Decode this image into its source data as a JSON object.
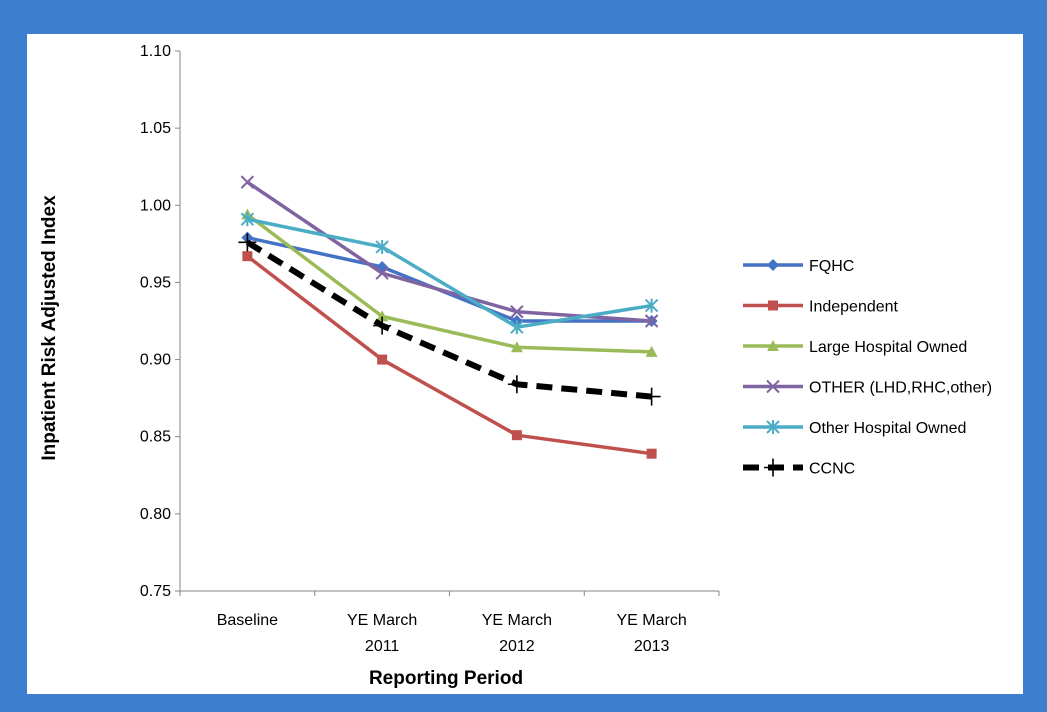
{
  "chart_data": {
    "type": "line",
    "title": "",
    "xlabel": "Reporting Period",
    "ylabel": "Inpatient Risk Adjusted Index",
    "ylim": [
      0.75,
      1.1
    ],
    "ytick_step": 0.05,
    "yticks": [
      "0.75",
      "0.80",
      "0.85",
      "0.90",
      "0.95",
      "1.00",
      "1.05",
      "1.10"
    ],
    "categories": [
      [
        "Baseline"
      ],
      [
        "YE March",
        "2011"
      ],
      [
        "YE March",
        "2012"
      ],
      [
        "YE March",
        "2013"
      ]
    ],
    "grid": false,
    "legend_position": "right",
    "series": [
      {
        "name": "FQHC",
        "values": [
          0.979,
          0.96,
          0.925,
          0.925
        ],
        "color": "#4472c4",
        "marker": "diamond",
        "dash": false
      },
      {
        "name": "Independent",
        "values": [
          0.967,
          0.9,
          0.851,
          0.839
        ],
        "color": "#c0504d",
        "marker": "square",
        "dash": false
      },
      {
        "name": "Large Hospital Owned",
        "values": [
          0.994,
          0.928,
          0.908,
          0.905
        ],
        "color": "#9bbb59",
        "marker": "triangle",
        "dash": false
      },
      {
        "name": "OTHER (LHD,RHC,other)",
        "values": [
          1.015,
          0.956,
          0.931,
          0.925
        ],
        "color": "#8064a2",
        "marker": "x",
        "dash": false
      },
      {
        "name": "Other Hospital Owned",
        "values": [
          0.991,
          0.973,
          0.921,
          0.935
        ],
        "color": "#4bacc6",
        "marker": "asterisk",
        "dash": false
      },
      {
        "name": "CCNC",
        "values": [
          0.976,
          0.922,
          0.884,
          0.876
        ],
        "color": "#000000",
        "marker": "plus",
        "dash": true
      }
    ]
  }
}
